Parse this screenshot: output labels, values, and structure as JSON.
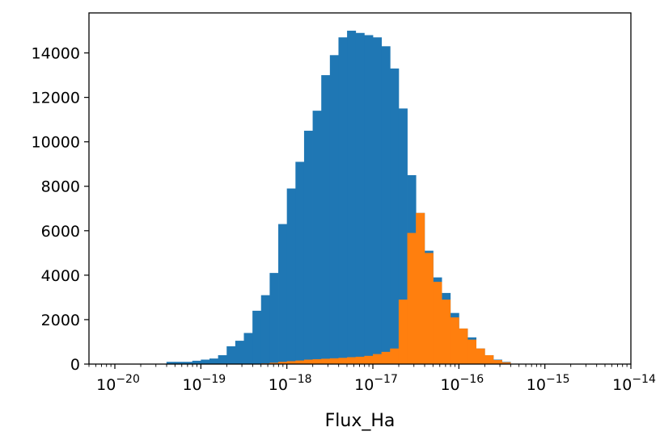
{
  "chart_data": {
    "type": "bar",
    "xscale": "log",
    "xlabel": "Flux_Ha",
    "ylabel": "",
    "xlim": [
      5e-21,
      1e-14
    ],
    "ylim": [
      0,
      15800
    ],
    "yticks": [
      0,
      2000,
      4000,
      6000,
      8000,
      10000,
      12000,
      14000
    ],
    "ytick_labels": [
      "0",
      "2000",
      "4000",
      "6000",
      "8000",
      "10000",
      "12000",
      "14000"
    ],
    "xticks": [
      {
        "base": "10",
        "exp": "−20",
        "value": 1e-20
      },
      {
        "base": "10",
        "exp": "−19",
        "value": 1e-19
      },
      {
        "base": "10",
        "exp": "−18",
        "value": 1e-18
      },
      {
        "base": "10",
        "exp": "−17",
        "value": 1e-17
      },
      {
        "base": "10",
        "exp": "−16",
        "value": 1e-16
      },
      {
        "base": "10",
        "exp": "−15",
        "value": 1e-15
      },
      {
        "base": "10",
        "exp": "−14",
        "value": 1e-14
      }
    ],
    "bins": {
      "log10_start": -19.4,
      "log10_width": 0.1
    },
    "series": [
      {
        "color": "#1f77b4",
        "values": [
          100,
          100,
          100,
          150,
          200,
          250,
          400,
          800,
          1050,
          1400,
          2400,
          3100,
          4100,
          6300,
          7900,
          9100,
          10500,
          11400,
          13000,
          13900,
          14700,
          15000,
          14900,
          14800,
          14700,
          14300,
          13300,
          11500,
          8500,
          6800,
          5100,
          3900,
          3200,
          2300,
          1600,
          1200,
          700,
          400,
          200,
          100
        ]
      },
      {
        "color": "#ff7f0e",
        "values": [
          0,
          0,
          0,
          0,
          0,
          0,
          0,
          0,
          0,
          0,
          0,
          30,
          60,
          100,
          130,
          160,
          200,
          220,
          240,
          260,
          280,
          310,
          330,
          370,
          450,
          550,
          700,
          2900,
          5900,
          6800,
          5000,
          3700,
          2900,
          2100,
          1600,
          1100,
          700,
          400,
          180,
          80
        ]
      }
    ]
  }
}
